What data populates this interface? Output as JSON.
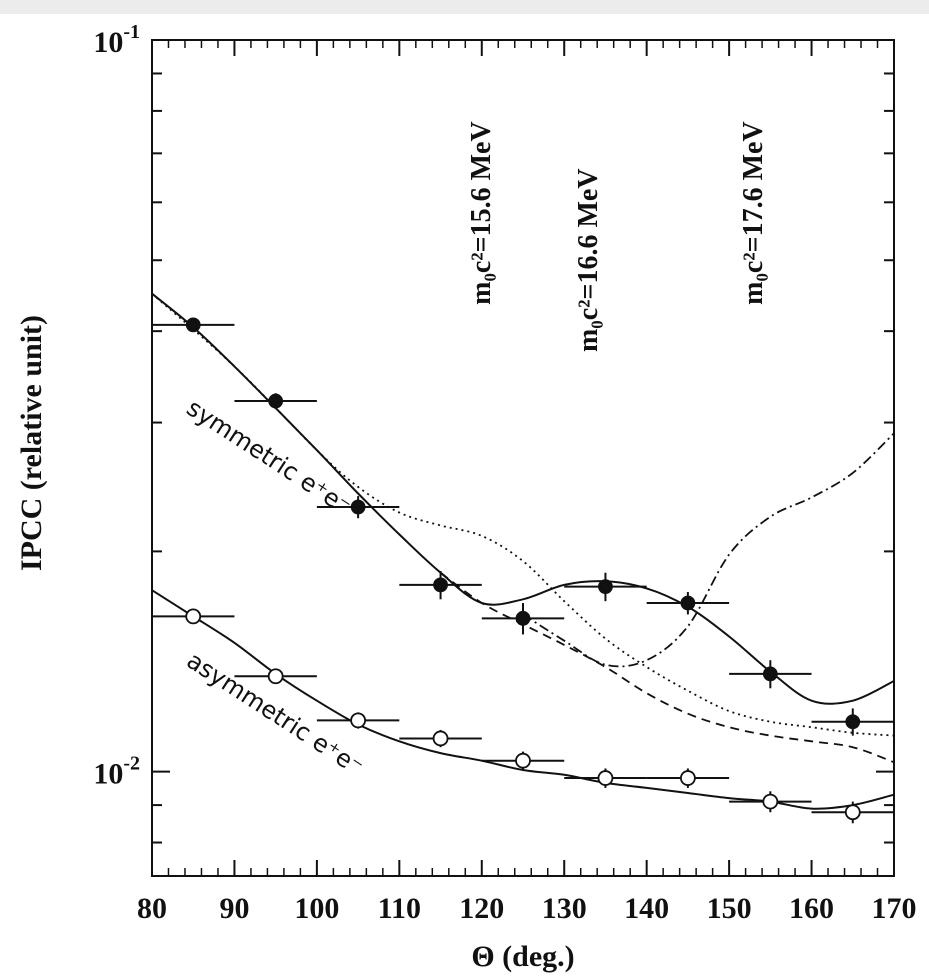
{
  "chart_data": {
    "type": "scatter",
    "title": "",
    "xlabel": "Θ (deg.)",
    "ylabel": "IPCC (relative unit)",
    "xlim": [
      80,
      170
    ],
    "ylim": [
      0.0072,
      0.1
    ],
    "yscale": "log",
    "x_ticks": [
      80,
      90,
      100,
      110,
      120,
      130,
      140,
      150,
      160,
      170
    ],
    "y_tick_labels": [
      {
        "value": 0.1,
        "base": "10",
        "exp": "-1"
      },
      {
        "value": 0.01,
        "base": "10",
        "exp": "-2"
      }
    ],
    "grid": false,
    "legend": "none",
    "series": [
      {
        "name": "symmetric e+e-",
        "marker": "filled-circle",
        "x": [
          85,
          95,
          105,
          115,
          125,
          135,
          145,
          155,
          165
        ],
        "y": [
          0.0408,
          0.0321,
          0.023,
          0.018,
          0.0162,
          0.0179,
          0.017,
          0.0136,
          0.0117
        ],
        "xerr": 5,
        "yerr": [
          0.0008,
          0.0008,
          0.0008,
          0.0008,
          0.0008,
          0.0008,
          0.0006,
          0.0006,
          0.0005
        ]
      },
      {
        "name": "asymmetric e+e-",
        "marker": "open-circle",
        "x": [
          85,
          95,
          105,
          115,
          125,
          135,
          145,
          155,
          165
        ],
        "y": [
          0.0163,
          0.0135,
          0.01175,
          0.0111,
          0.01035,
          0.0098,
          0.0098,
          0.0091,
          0.0088
        ],
        "xerr": 5,
        "yerr": [
          0.0002,
          0.0003,
          0.0003,
          0.0003,
          0.0003,
          0.0003,
          0.0003,
          0.0003,
          0.0003
        ]
      }
    ],
    "curves": [
      {
        "style": "solid",
        "x": [
          80,
          85,
          90,
          95,
          100,
          105,
          110,
          115,
          120,
          125,
          130,
          135,
          140,
          145,
          150,
          155,
          160,
          165,
          170
        ],
        "y": [
          0.045,
          0.0405,
          0.0358,
          0.0314,
          0.0275,
          0.024,
          0.0211,
          0.0187,
          0.017,
          0.0172,
          0.018,
          0.0182,
          0.0178,
          0.0168,
          0.0153,
          0.0137,
          0.0125,
          0.0125,
          0.0133
        ]
      },
      {
        "style": "dotted",
        "x": [
          80,
          90,
          100,
          105,
          110,
          115,
          120,
          125,
          130,
          135,
          140,
          145,
          150,
          155,
          160,
          165,
          170
        ],
        "y": [
          0.045,
          0.0358,
          0.0275,
          0.0245,
          0.0226,
          0.0217,
          0.021,
          0.0194,
          0.0171,
          0.0152,
          0.0139,
          0.0129,
          0.0121,
          0.0117,
          0.0115,
          0.0113,
          0.0112
        ]
      },
      {
        "style": "dashed",
        "x": [
          115,
          120,
          125,
          130,
          135,
          140,
          145,
          150,
          155,
          160,
          165,
          170
        ],
        "y": [
          0.0187,
          0.017,
          0.0159,
          0.0149,
          0.0139,
          0.0128,
          0.012,
          0.0115,
          0.0112,
          0.011,
          0.0108,
          0.0103
        ]
      },
      {
        "style": "dash-dot",
        "x": [
          125,
          130,
          135,
          140,
          145,
          150,
          155,
          160,
          165,
          170
        ],
        "y": [
          0.0164,
          0.0151,
          0.014,
          0.0142,
          0.0158,
          0.0198,
          0.0223,
          0.0237,
          0.0256,
          0.029
        ]
      },
      {
        "style": "solid",
        "x": [
          80,
          85,
          90,
          95,
          100,
          105,
          110,
          115,
          120,
          125,
          130,
          135,
          140,
          145,
          150,
          155,
          160,
          165,
          170
        ],
        "y": [
          0.0177,
          0.0163,
          0.015,
          0.0136,
          0.0125,
          0.0116,
          0.011,
          0.0106,
          0.01035,
          0.01005,
          0.0099,
          0.00965,
          0.0095,
          0.00935,
          0.0092,
          0.0091,
          0.0089,
          0.009,
          0.0093
        ]
      }
    ],
    "annotations": [
      {
        "text": "m₀c²=15.6 MeV",
        "at": [
          121,
          0.058
        ]
      },
      {
        "text": "m₀c²=16.6 MeV",
        "at": [
          134,
          0.05
        ]
      },
      {
        "text": "m₀c²=17.6 MeV",
        "at": [
          154,
          0.058
        ]
      },
      {
        "text": "symmetric e⁺e⁻",
        "at": [
          84,
          0.031
        ]
      },
      {
        "text": "asymmetric e⁺e⁻",
        "at": [
          84,
          0.014
        ]
      }
    ]
  }
}
